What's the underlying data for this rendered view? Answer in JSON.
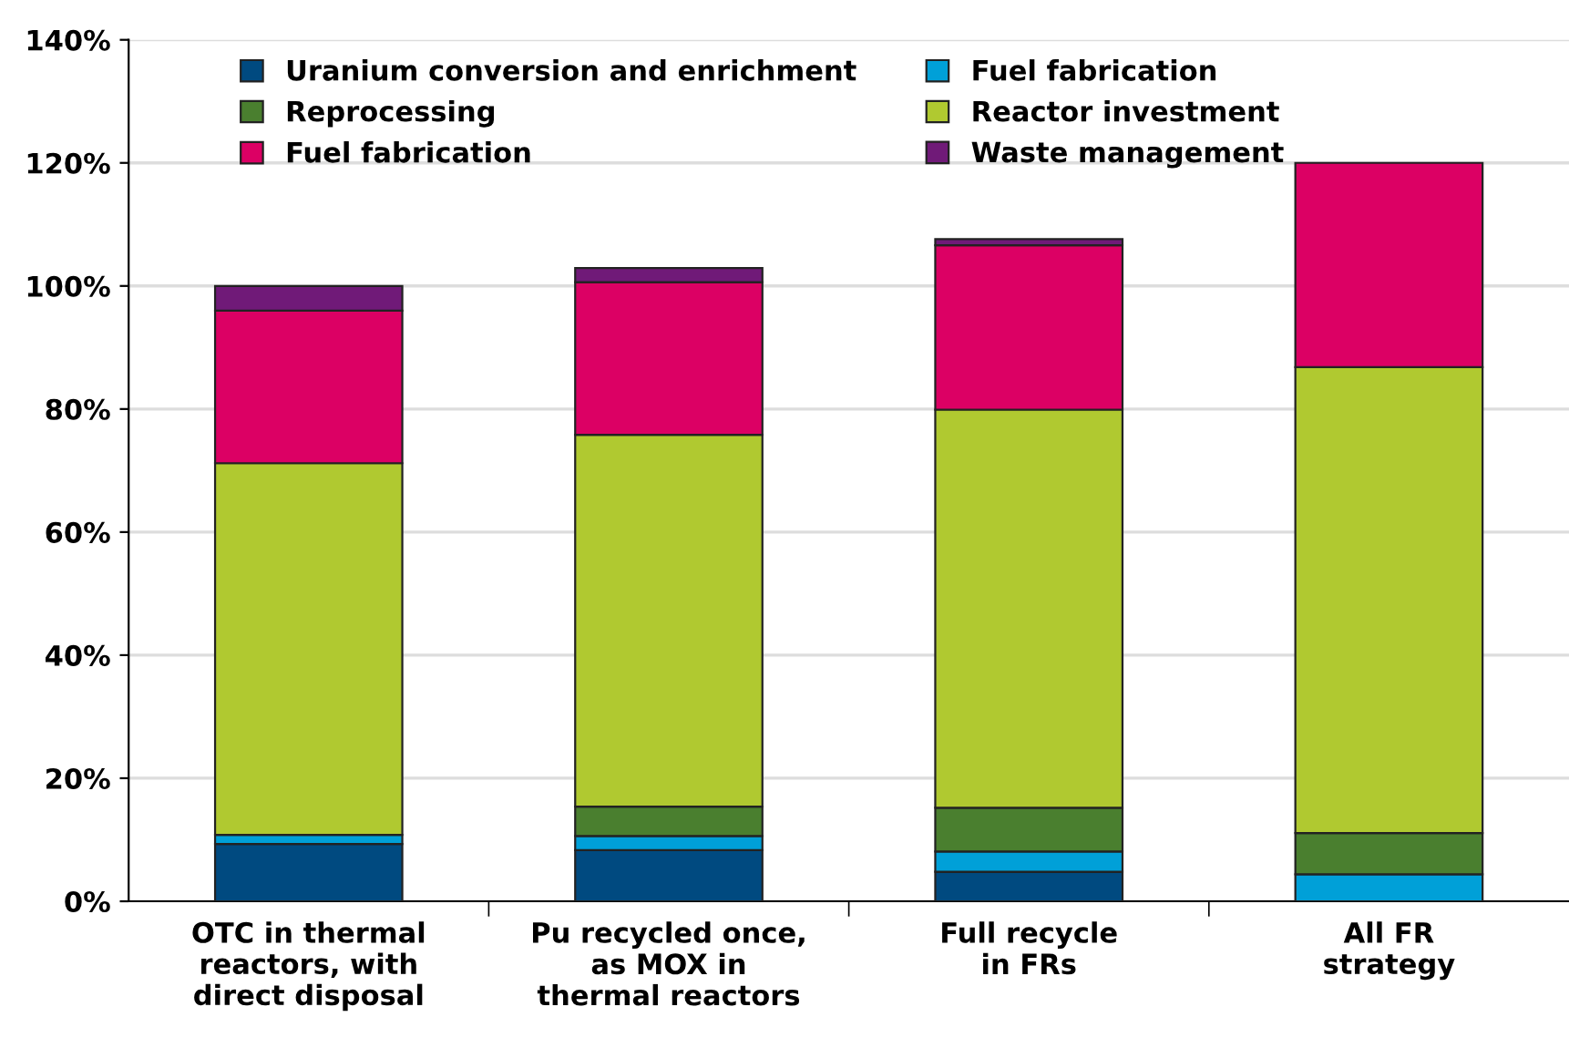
{
  "chart_data": {
    "type": "bar",
    "stacked": true,
    "categories": [
      "OTC in thermal\nreactors, with\ndirect disposal",
      "Pu recycled once,\nas MOX in\nthermal reactors",
      "Full recycle\nin FRs",
      "All FR\nstrategy"
    ],
    "series": [
      {
        "name": "Uranium conversion and enrichment",
        "color": "#004a80",
        "values": [
          9.3,
          8.3,
          4.8,
          null
        ]
      },
      {
        "name": "Fuel fabrication",
        "color": "#00a0d8",
        "values": [
          1.5,
          2.3,
          3.3,
          4.4
        ]
      },
      {
        "name": "Reprocessing",
        "color": "#4a7f2f",
        "values": [
          null,
          4.8,
          7.1,
          6.7
        ]
      },
      {
        "name": "Reactor investment",
        "color": "#b0c930",
        "values": [
          60.4,
          60.4,
          64.7,
          75.7
        ]
      },
      {
        "name": "Fuel fabrication",
        "color": "#dc0064",
        "values": [
          24.8,
          24.8,
          26.7,
          33.2
        ]
      },
      {
        "name": "Waste management",
        "color": "#701a78",
        "values": [
          4.0,
          2.3,
          1.0,
          null
        ]
      }
    ],
    "ylim": [
      0,
      140
    ],
    "yticks": [
      {
        "value": 0,
        "label": "0%"
      },
      {
        "value": 20,
        "label": "20%"
      },
      {
        "value": 40,
        "label": "40%"
      },
      {
        "value": 60,
        "label": "60%"
      },
      {
        "value": 80,
        "label": "80%"
      },
      {
        "value": 100,
        "label": "100%"
      },
      {
        "value": 120,
        "label": "120%"
      },
      {
        "value": 140,
        "label": "140%"
      }
    ],
    "grid": "y",
    "legend": "top"
  }
}
